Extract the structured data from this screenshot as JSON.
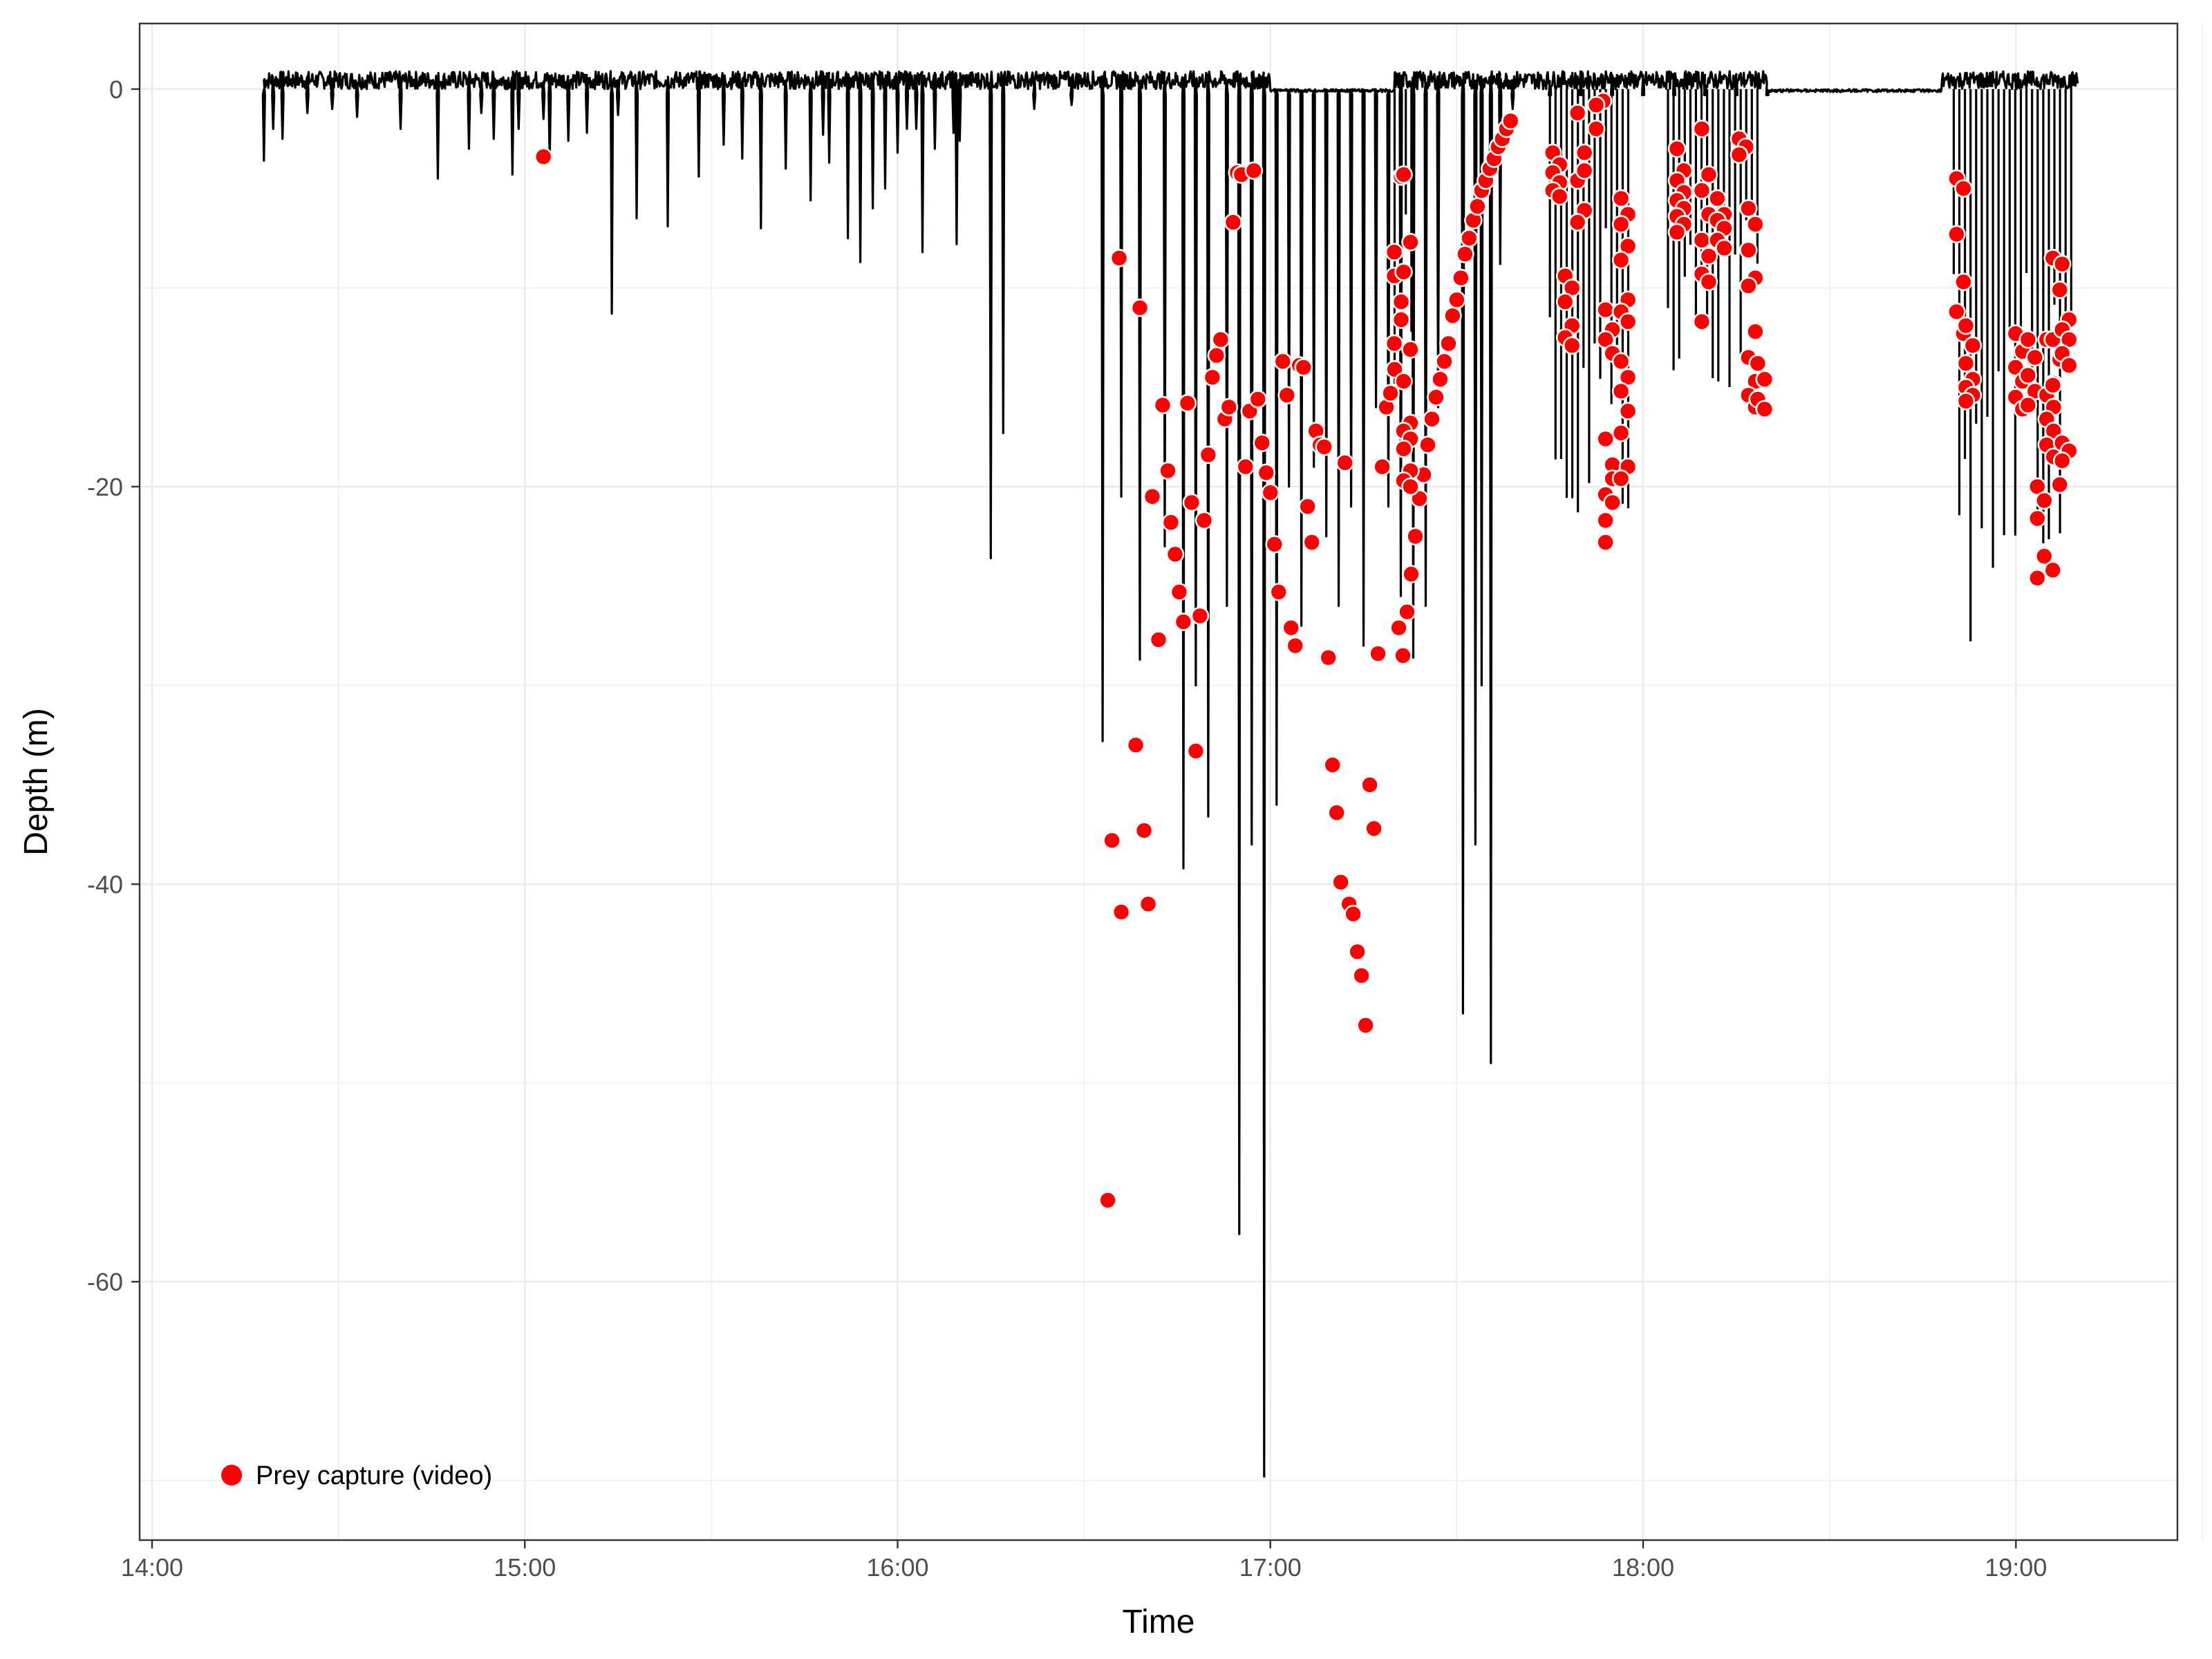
{
  "chart_data": {
    "type": "line",
    "xlabel": "Time",
    "ylabel": "Depth (m)",
    "xlim": [
      "13:58",
      "19:26"
    ],
    "ylim": [
      -73,
      3.3
    ],
    "x_ticks": [
      {
        "label": "14:00",
        "value": "14:00"
      },
      {
        "label": "15:00",
        "value": "15:00"
      },
      {
        "label": "16:00",
        "value": "16:00"
      },
      {
        "label": "17:00",
        "value": "17:00"
      },
      {
        "label": "18:00",
        "value": "18:00"
      },
      {
        "label": "19:00",
        "value": "19:00"
      }
    ],
    "y_ticks": [
      0,
      -20,
      -40,
      -60
    ],
    "grid": true,
    "legend_position": "bottom-left",
    "colors": {
      "line": "#000000",
      "points": "#ff0000",
      "point_outline": "#ffffff",
      "grid": "#ebebeb",
      "border": "#333333"
    },
    "series": [
      {
        "kind": "line",
        "dives": [
          [
            "14:18:00",
            -3.6
          ],
          [
            "14:19:30",
            -2.0
          ],
          [
            "14:21:00",
            -2.5
          ],
          [
            "14:25:00",
            -1.2
          ],
          [
            "14:29:00",
            -1.0
          ],
          [
            "14:33:00",
            -1.4
          ],
          [
            "14:40:00",
            -2.0
          ],
          [
            "14:46:00",
            -4.5
          ],
          [
            "14:51:00",
            -3.0
          ],
          [
            "14:55:00",
            -2.5
          ],
          [
            "14:59:00",
            -2.0
          ],
          [
            "15:03:00",
            -1.5
          ],
          [
            "14:53:00",
            -1.2
          ],
          [
            "14:58:00",
            -4.3
          ],
          [
            "15:04:00",
            -3.6
          ],
          [
            "15:07:00",
            -2.6
          ],
          [
            "15:10:00",
            -2.2
          ],
          [
            "15:15:00",
            -1.3
          ],
          [
            "15:18:00",
            -6.5
          ],
          [
            "15:23:00",
            -6.9
          ],
          [
            "15:28:00",
            -4.4
          ],
          [
            "15:32:00",
            -2.8
          ],
          [
            "15:35:00",
            -3.5
          ],
          [
            "15:38:00",
            -7.0
          ],
          [
            "15:42:00",
            -4.0
          ],
          [
            "15:46:00",
            -5.6
          ],
          [
            "15:49:00",
            -3.7
          ],
          [
            "15:52:00",
            -7.5
          ],
          [
            "15:56:00",
            -6.0
          ],
          [
            "15:58:00",
            -5.0
          ],
          [
            "16:00:00",
            -3.2
          ],
          [
            "16:03:00",
            -2.0
          ],
          [
            "16:06:00",
            -3.0
          ],
          [
            "16:09:00",
            -2.2
          ],
          [
            "15:48:00",
            -2.3
          ],
          [
            "16:01:30",
            -2.0
          ],
          [
            "16:10:00",
            -2.6
          ],
          [
            "15:14:00",
            -11.3
          ],
          [
            "15:54:00",
            -8.7
          ],
          [
            "16:04:00",
            -8.2
          ],
          [
            "16:09:30",
            -7.8
          ],
          [
            "16:15:00",
            -23.6
          ],
          [
            "16:17:00",
            -17.3
          ],
          [
            "16:22:00",
            -1.0
          ],
          [
            "16:28:00",
            -0.8
          ],
          [
            "16:33:00",
            -32.8
          ],
          [
            "16:36:00",
            -20.5
          ],
          [
            "16:39:00",
            -28.7
          ],
          [
            "16:43:00",
            -23.0
          ],
          [
            "16:46:00",
            -39.2
          ],
          [
            "16:48:00",
            -30.0
          ],
          [
            "16:50:00",
            -36.6
          ],
          [
            "16:53:00",
            -26.0
          ],
          [
            "16:55:00",
            -57.6
          ],
          [
            "16:57:00",
            -38.0
          ],
          [
            "16:59:00",
            -69.8
          ],
          [
            "17:01:00",
            -36.0
          ],
          [
            "17:03:00",
            -20.0
          ],
          [
            "17:05:00",
            -27.0
          ],
          [
            "17:07:00",
            -19.0
          ],
          [
            "17:09:00",
            -22.5
          ],
          [
            "17:11:00",
            -26.0
          ],
          [
            "17:13:00",
            -21.0
          ],
          [
            "17:15:00",
            -28.0
          ],
          [
            "17:17:00",
            -16.0
          ],
          [
            "17:19:00",
            -21.0
          ],
          [
            "17:21:00",
            -25.5
          ],
          [
            "17:23:00",
            -28.6
          ],
          [
            "17:25:00",
            -26.0
          ],
          [
            "17:27:00",
            -16.0
          ],
          [
            "17:31:00",
            -46.5
          ],
          [
            "17:33:00",
            -38.0
          ],
          [
            "17:34:00",
            -30.0
          ],
          [
            "17:35:30",
            -49.0
          ],
          [
            "17:37:00",
            -8.8
          ],
          [
            "17:39:00",
            -1.0
          ],
          [
            "17:45:00",
            -0.3
          ],
          [
            "17:50:00",
            -0.3
          ],
          [
            "17:55:00",
            -0.3
          ],
          [
            "18:00:00",
            -0.3
          ],
          [
            "18:05:00",
            -0.3
          ],
          [
            "18:10:00",
            -0.3
          ],
          [
            "18:15:00",
            -0.3
          ],
          [
            "18:20:00",
            -0.3
          ]
        ],
        "surface_noise": -0.9
      },
      {
        "kind": "points",
        "name": "Prey capture (video)",
        "x": [
          "15:03:00",
          "16:35:40",
          "16:33:50",
          "16:34:30",
          "16:36:00",
          "16:38:20",
          "16:39:00",
          "16:39:40",
          "16:40:20",
          "16:41:00",
          "16:42:00",
          "16:42:40",
          "16:43:30",
          "16:44:00",
          "16:44:40",
          "16:45:20",
          "16:46:00",
          "16:46:40",
          "16:47:20",
          "16:48:00",
          "16:48:40",
          "16:49:20",
          "16:50:00",
          "16:50:40",
          "16:51:20",
          "16:52:00",
          "16:52:40",
          "16:53:20",
          "16:54:00",
          "16:54:40",
          "16:55:20",
          "16:56:00",
          "16:56:40",
          "16:57:20",
          "16:58:00",
          "16:58:40",
          "16:59:20",
          "17:00:00",
          "17:00:40",
          "17:01:20",
          "17:02:00",
          "17:02:40",
          "17:03:20",
          "17:04:00",
          "17:04:40",
          "17:05:20",
          "17:06:00",
          "17:06:40",
          "17:07:20",
          "17:08:00",
          "17:08:40",
          "17:09:20",
          "17:10:00",
          "17:10:40",
          "17:11:20",
          "17:12:00",
          "17:12:40",
          "17:13:20",
          "17:14:00",
          "17:14:40",
          "17:15:20",
          "17:16:00",
          "17:16:40",
          "17:17:20",
          "17:18:00",
          "17:18:40",
          "17:19:20",
          "17:20:00",
          "17:20:40",
          "17:21:20",
          "17:22:00",
          "17:22:40",
          "17:23:20",
          "17:24:00",
          "17:24:40",
          "17:25:20",
          "17:26:00",
          "17:26:40",
          "17:27:20",
          "17:28:00",
          "17:28:40",
          "17:29:20",
          "17:30:00",
          "17:30:40",
          "17:31:20",
          "17:32:00",
          "17:32:40",
          "17:33:20",
          "17:34:00",
          "17:34:40",
          "17:35:20",
          "17:36:00",
          "17:36:40",
          "17:37:20",
          "17:38:00",
          "17:38:40"
        ],
        "y": [
          -3.4,
          -8.5,
          -55.9,
          -37.8,
          -41.4,
          -33.0,
          -11.0,
          -37.3,
          -41.0,
          -20.5,
          -27.7,
          -15.9,
          -19.2,
          -21.8,
          -23.4,
          -25.3,
          -26.8,
          -15.8,
          -20.8,
          -33.3,
          -26.5,
          -21.7,
          -18.4,
          -14.5,
          -13.4,
          -12.6,
          -16.6,
          -16.0,
          -6.7,
          -4.2,
          -4.3,
          -19.0,
          -16.2,
          -4.1,
          -15.6,
          -17.8,
          -19.3,
          -20.3,
          -22.9,
          -25.3,
          -13.7,
          -15.4,
          -27.1,
          -28.0,
          -13.9,
          -14.0,
          -21.0,
          -22.8,
          -17.2,
          -17.9,
          -18.0,
          -28.6,
          -34.0,
          -36.4,
          -39.9,
          -18.8,
          -41.0,
          -41.5,
          -43.4,
          -44.6,
          -47.1,
          -35.0,
          -37.2,
          -28.4,
          -19.0,
          -16.0,
          -15.3,
          -14.1,
          -27.1,
          -28.5,
          -26.3,
          -24.4,
          -22.5,
          -20.6,
          -19.4,
          -17.9,
          -16.6,
          -15.5,
          -14.6,
          -13.7,
          -12.8,
          -11.4,
          -10.6,
          -9.5,
          -8.3,
          -7.5,
          -6.6,
          -5.9,
          -5.1,
          -4.6,
          -4.0,
          -3.5,
          -2.9,
          -2.5,
          -2.0,
          -1.6
        ]
      },
      {
        "kind": "point_clusters",
        "name": "Prey capture (video)",
        "clusters": [
          {
            "x": "17:20:30",
            "y": [
              -9.4,
              -11.6,
              -12.8,
              -4.4,
              -8.2,
              -10.7
            ]
          },
          {
            "x": "17:22:00",
            "y": [
              -4.3,
              -7.7,
              -9.2,
              -13.1,
              -14.7,
              -16.8,
              -17.2,
              -17.6,
              -18.1,
              -19.2,
              -19.7,
              -20.0
            ]
          },
          {
            "x": "17:46:00",
            "y": [
              -3.2,
              -3.8,
              -4.2,
              -4.7,
              -5.1,
              -5.4
            ]
          },
          {
            "x": "17:48:00",
            "y": [
              -9.4,
              -10.0,
              -10.7,
              -11.9,
              -12.5,
              -12.9
            ]
          },
          {
            "x": "17:50:00",
            "y": [
              -1.2,
              -3.2,
              -4.6,
              -6.1,
              -6.7,
              -4.1
            ]
          },
          {
            "x": "17:53:00",
            "y": [
              -2.0,
              -0.6,
              -0.8
            ]
          },
          {
            "x": "17:54:30",
            "y": [
              -11.1,
              -12.1,
              -12.6,
              -13.3,
              -17.6,
              -18.9,
              -20.4,
              -20.8,
              -22.8,
              -19.6,
              -21.7
            ]
          },
          {
            "x": "17:57:00",
            "y": [
              -5.5,
              -6.3,
              -6.8,
              -7.9,
              -8.6,
              -10.6,
              -11.2,
              -11.7,
              -13.7,
              -14.5,
              -15.2,
              -16.2,
              -17.3,
              -19.0,
              -19.6
            ]
          },
          {
            "x": "18:06:00",
            "y": [
              -3.0,
              -4.1,
              -4.6,
              -5.2,
              -5.6,
              -6.0,
              -6.4,
              -6.8,
              -7.2
            ]
          },
          {
            "x": "18:10:00",
            "y": [
              -2.0,
              -4.3,
              -5.1,
              -6.3,
              -7.6,
              -8.4,
              -9.3,
              -9.7,
              -11.7
            ]
          },
          {
            "x": "18:12:30",
            "y": [
              -5.5,
              -6.3,
              -6.6,
              -7.0,
              -7.6,
              -8.0
            ]
          },
          {
            "x": "18:16:00",
            "y": [
              -2.5,
              -2.9,
              -3.3
            ]
          },
          {
            "x": "18:17:30",
            "y": [
              -6.0,
              -6.8,
              -8.1,
              -9.5,
              -9.9,
              -12.2,
              -13.5,
              -14.7,
              -15.4,
              -16.0
            ]
          },
          {
            "x": "18:19:00",
            "y": [
              -13.8,
              -14.6,
              -15.6,
              -16.1
            ]
          },
          {
            "x": "18:51:00",
            "y": [
              -4.5,
              -5.0,
              -7.3,
              -9.7,
              -11.2,
              -12.3
            ]
          },
          {
            "x": "18:52:30",
            "y": [
              -11.9,
              -12.9,
              -13.8,
              -14.6,
              -15.0,
              -15.4,
              -15.7
            ]
          },
          {
            "x": "19:00:30",
            "y": [
              -12.3,
              -13.2,
              -14.0,
              -14.7,
              -15.5,
              -16.1
            ]
          },
          {
            "x": "19:02:30",
            "y": [
              -12.6,
              -13.5,
              -14.4,
              -15.2,
              -15.9
            ]
          },
          {
            "x": "19:04:00",
            "y": [
              -20.0,
              -20.7,
              -21.6,
              -23.5,
              -24.6
            ]
          },
          {
            "x": "19:05:30",
            "y": [
              -12.6,
              -14.8,
              -15.4,
              -16.0,
              -16.6,
              -17.2,
              -17.9,
              -18.5
            ]
          },
          {
            "x": "19:06:30",
            "y": [
              -8.5,
              -10.1,
              -12.6,
              -13.6,
              -14.9,
              -19.9,
              -24.2
            ]
          },
          {
            "x": "19:08:00",
            "y": [
              -8.8,
              -11.6,
              -12.1,
              -12.6,
              -13.3,
              -13.9,
              -17.8,
              -18.2,
              -18.7
            ]
          }
        ]
      }
    ],
    "legend": [
      {
        "label": "Prey capture (video)",
        "marker": "red-filled-circle-white-outline"
      }
    ]
  }
}
